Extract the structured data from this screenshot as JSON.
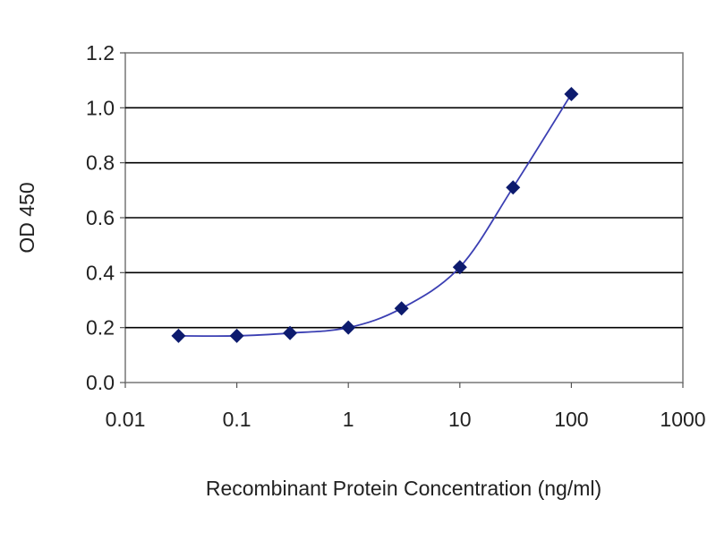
{
  "chart_data": {
    "type": "scatter",
    "title": "",
    "xlabel": "Recombinant Protein Concentration (ng/ml)",
    "ylabel": "OD 450",
    "x_scale": "log",
    "xlim": [
      0.01,
      1000
    ],
    "ylim": [
      0,
      1.2
    ],
    "x_ticks": [
      0.01,
      0.1,
      1,
      10,
      100,
      1000
    ],
    "x_tick_labels": [
      "0.01",
      "0.1",
      "1",
      "10",
      "100",
      "1000"
    ],
    "y_ticks": [
      0,
      0.2,
      0.4,
      0.6,
      0.8,
      1.0,
      1.2
    ],
    "y_tick_labels": [
      "0.0",
      "0.2",
      "0.4",
      "0.6",
      "0.8",
      "1.0",
      "1.2"
    ],
    "grid": "horizontal",
    "legend": "none",
    "series": [
      {
        "x": [
          0.03,
          0.1,
          0.3,
          1,
          3,
          10,
          30,
          100
        ],
        "y": [
          0.17,
          0.17,
          0.18,
          0.2,
          0.27,
          0.42,
          0.71,
          1.05
        ],
        "marker": "diamond",
        "fitted_curve": true
      }
    ],
    "colors": {
      "marker": "#0d1b6e",
      "curve": "#3b3fb3",
      "grid": "#000000",
      "frame": "#777777"
    }
  }
}
